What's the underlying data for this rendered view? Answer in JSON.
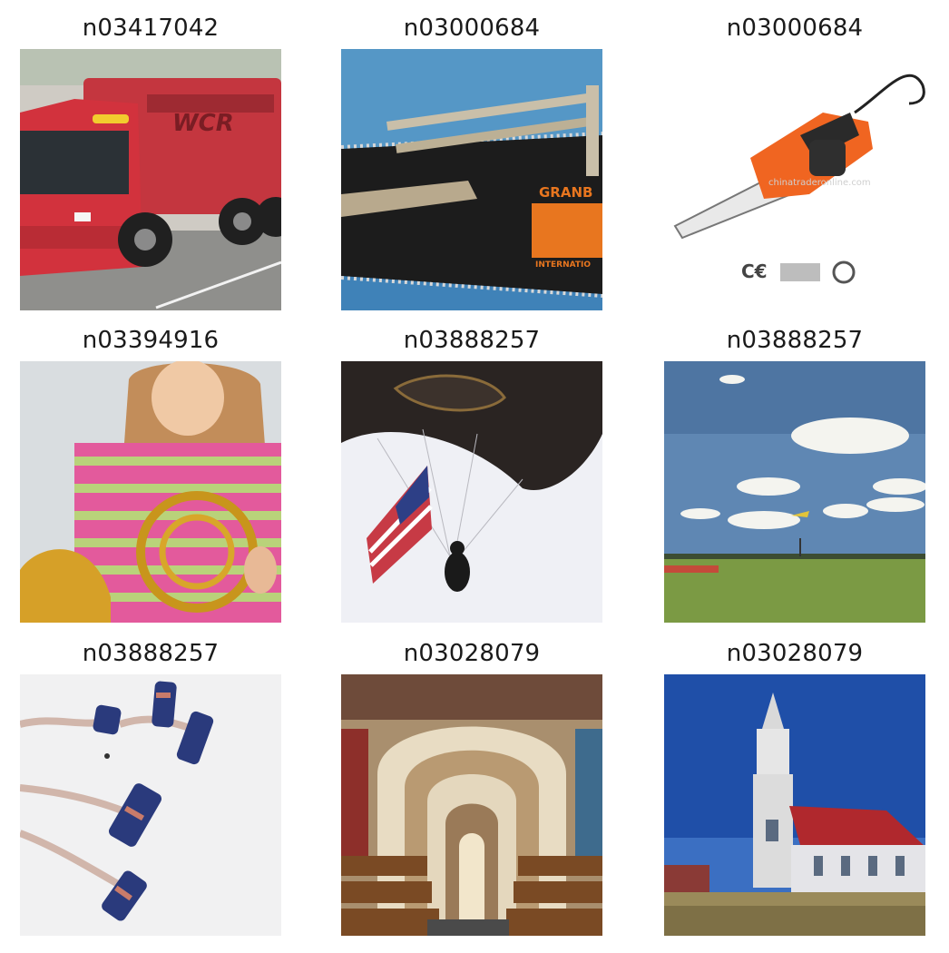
{
  "grid": {
    "items": [
      {
        "label": "n03417042",
        "subject": "red-truck"
      },
      {
        "label": "n03000684",
        "subject": "chainsaw-closeup"
      },
      {
        "label": "n03000684",
        "subject": "chainsaw-product",
        "logo_text": "chinatraderonline.com"
      },
      {
        "label": "n03394916",
        "subject": "girl-french-horn"
      },
      {
        "label": "n03888257",
        "subject": "parachute-flag"
      },
      {
        "label": "n03888257",
        "subject": "parachute-sky"
      },
      {
        "label": "n03888257",
        "subject": "parachute-formation"
      },
      {
        "label": "n03028079",
        "subject": "church-interior"
      },
      {
        "label": "n03028079",
        "subject": "church-exterior"
      }
    ]
  }
}
